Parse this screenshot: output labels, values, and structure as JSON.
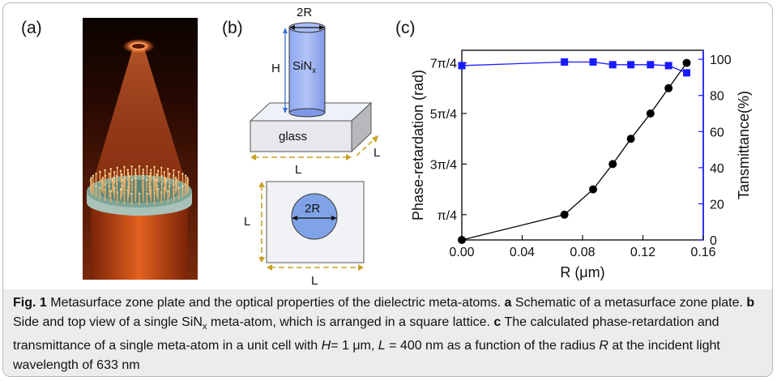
{
  "panels": {
    "a": {
      "label": "(a)"
    },
    "b": {
      "label": "(b)",
      "diameter": "2R",
      "height": "H",
      "material": "SiN",
      "material_sub": "x",
      "substrate": "glass",
      "length_front": "L",
      "length_side": "L",
      "top_diameter": "2R",
      "top_left": "L",
      "top_bottom": "L"
    },
    "c": {
      "label": "(c)"
    }
  },
  "chart_data": {
    "type": "line",
    "xlabel": "R (μm)",
    "ylabel_left": "Phase-retardation (rad)",
    "ylabel_right": "Tansmittance(%)",
    "xlim": [
      0.0,
      0.16
    ],
    "x_ticks": [
      "0.00",
      "0.04",
      "0.08",
      "0.12",
      "0.16"
    ],
    "x_tick_values": [
      0.0,
      0.04,
      0.08,
      0.12,
      0.16
    ],
    "y_left_ticks": [
      "π/4",
      "3π/4",
      "5π/4",
      "7π/4"
    ],
    "y_left_tick_values": [
      0.7854,
      2.3562,
      3.927,
      5.4978
    ],
    "y_left_lim": [
      0.0,
      5.89
    ],
    "y_right_ticks": [
      "0",
      "20",
      "40",
      "60",
      "80",
      "100"
    ],
    "y_right_tick_values": [
      0,
      20,
      40,
      60,
      80,
      100
    ],
    "y_right_lim": [
      0,
      105
    ],
    "series": [
      {
        "axis": "left",
        "color": "#000000",
        "marker": "circle",
        "x": [
          0.0,
          0.068,
          0.087,
          0.1,
          0.112,
          0.125,
          0.137,
          0.149
        ],
        "values": [
          0.0,
          0.7854,
          1.5708,
          2.3562,
          3.1416,
          3.927,
          4.7124,
          5.4978
        ]
      },
      {
        "axis": "right",
        "color": "#1a1aff",
        "marker": "square",
        "x": [
          0.0,
          0.068,
          0.087,
          0.1,
          0.112,
          0.125,
          0.137,
          0.149
        ],
        "values": [
          96.5,
          98.5,
          98.5,
          97.0,
          97.0,
          97.0,
          96.5,
          92.5
        ]
      }
    ],
    "colors": {
      "left_axis": "#000000",
      "right_axis": "#1a1aff"
    }
  },
  "caption": {
    "fig_label": "Fig. 1",
    "intro": "Metasurface zone plate and the optical properties of the dielectric meta-atoms.",
    "a_label": "a",
    "a_text": "Schematic of a metasurface zone plate.",
    "b_label": "b",
    "b_text_pre": "Side and top view of a single SiN",
    "b_text_sub": "x",
    "b_text_post": "meta-atom, which is arranged in a square lattice.",
    "c_label": "c",
    "c_text_pre": "The calculated phase-retardation and transmittance of a single meta-atom in a unit cell with",
    "h_symbol": "H",
    "h_value": "= 1 μm,",
    "l_symbol": "L",
    "l_value": "= 400 nm as a function of the radius",
    "r_symbol": "R",
    "c_text_post": "at the incident light wavelength of 633 nm"
  }
}
